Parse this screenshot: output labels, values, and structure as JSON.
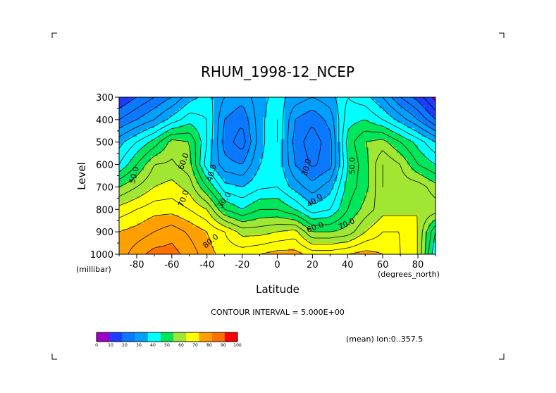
{
  "chart_data": {
    "type": "heatmap",
    "title": "RHUM_1998-12_NCEP",
    "xlabel": "Latitude",
    "ylabel": "Level",
    "x_unit": "(degrees_north)",
    "y_unit": "(millibar)",
    "xlim": [
      -90,
      90
    ],
    "ylim": [
      1000,
      300
    ],
    "x_ticks": [
      "-80",
      "-60",
      "-40",
      "-20",
      "0",
      "20",
      "40",
      "60",
      "80"
    ],
    "y_ticks": [
      "300",
      "400",
      "500",
      "600",
      "700",
      "800",
      "900",
      "1000"
    ],
    "contour_interval_text": "CONTOUR INTERVAL = 5.000E+00",
    "mean_note": "(mean) lon:0..357.5",
    "contour_labels": [
      "60.0",
      "50.0",
      "70.0",
      "40.0",
      "30.0",
      "30.0",
      "40.0",
      "50.0",
      "60.0",
      "70.0",
      "80.0"
    ],
    "colorbar": {
      "ticks": [
        "0",
        "10",
        "20",
        "30",
        "40",
        "50",
        "60",
        "70",
        "80",
        "90",
        "100"
      ],
      "colors": [
        "#a000c8",
        "#1e3cff",
        "#0a78ff",
        "#00a0ff",
        "#00ffff",
        "#00e65a",
        "#a0e632",
        "#ffff00",
        "#ffa000",
        "#ff6e00",
        "#ff0000"
      ]
    },
    "latitudes": [
      -90,
      -80,
      -70,
      -60,
      -50,
      -40,
      -30,
      -20,
      -10,
      0,
      10,
      20,
      30,
      40,
      50,
      60,
      70,
      80,
      90
    ],
    "levels": [
      300,
      400,
      500,
      600,
      700,
      800,
      900,
      1000
    ],
    "values": [
      [
        15,
        20,
        25,
        30,
        38,
        42,
        35,
        32,
        38,
        42,
        38,
        35,
        38,
        45,
        42,
        35,
        25,
        18,
        8
      ],
      [
        25,
        30,
        35,
        42,
        48,
        45,
        30,
        26,
        38,
        45,
        30,
        26,
        32,
        48,
        50,
        45,
        38,
        30,
        20
      ],
      [
        38,
        45,
        52,
        62,
        60,
        45,
        28,
        22,
        38,
        45,
        28,
        22,
        28,
        52,
        60,
        62,
        55,
        48,
        40
      ],
      [
        45,
        55,
        65,
        66,
        62,
        42,
        32,
        30,
        40,
        44,
        30,
        24,
        28,
        50,
        58,
        70,
        65,
        55,
        50
      ],
      [
        60,
        65,
        70,
        72,
        68,
        55,
        42,
        40,
        44,
        45,
        38,
        32,
        38,
        52,
        58,
        70,
        68,
        68,
        62
      ],
      [
        72,
        75,
        78,
        78,
        75,
        70,
        55,
        50,
        55,
        55,
        50,
        42,
        45,
        55,
        62,
        68,
        68,
        70,
        68
      ],
      [
        80,
        82,
        85,
        88,
        84,
        80,
        75,
        68,
        68,
        70,
        72,
        60,
        60,
        62,
        70,
        75,
        75,
        70,
        50
      ],
      [
        82,
        88,
        92,
        92,
        88,
        82,
        78,
        78,
        80,
        82,
        82,
        78,
        78,
        80,
        82,
        80,
        75,
        70,
        45
      ]
    ]
  }
}
